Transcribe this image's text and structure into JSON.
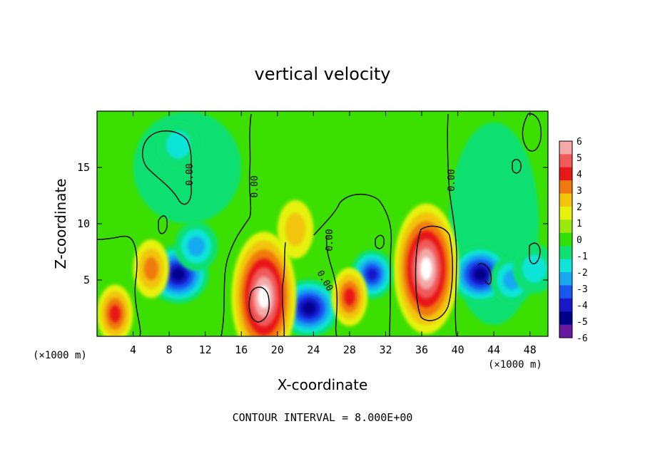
{
  "chart_data": {
    "type": "heatmap",
    "title": "vertical velocity",
    "xlabel": "X-coordinate",
    "ylabel": "Z-coordinate",
    "x_unit_left": "(×1000 m)",
    "x_unit_right": "(×1000 m)",
    "footer": "CONTOUR INTERVAL = 8.000E+00",
    "xlim": [
      0,
      50
    ],
    "ylim": [
      0,
      20
    ],
    "x_ticks": [
      4,
      8,
      12,
      16,
      20,
      24,
      28,
      32,
      36,
      40,
      44,
      48
    ],
    "y_ticks": [
      5,
      10,
      15
    ],
    "contour_label": "0.00",
    "colorbar": {
      "levels": [
        6,
        5,
        4,
        3,
        2,
        1,
        0,
        -1,
        -2,
        -3,
        -4,
        -5,
        -6
      ],
      "colors": [
        "#f4a8a8",
        "#f05a5a",
        "#e81818",
        "#f07a10",
        "#f2c40a",
        "#e6f20c",
        "#9ae80c",
        "#30e000",
        "#10e070",
        "#10e4d8",
        "#18a8f0",
        "#1858f0",
        "#1818c8",
        "#00008c",
        "#6a1aa0"
      ]
    },
    "updrafts": [
      {
        "x": 2,
        "z": 2,
        "peak": 5
      },
      {
        "x": 6,
        "z": 6,
        "peak": 4
      },
      {
        "x": 18.5,
        "z": 3.5,
        "peak": 9
      },
      {
        "x": 22,
        "z": 9.5,
        "peak": 2
      },
      {
        "x": 28,
        "z": 3.5,
        "peak": 5
      },
      {
        "x": 36.5,
        "z": 6,
        "peak": 12
      }
    ],
    "downdrafts": [
      {
        "x": 9,
        "z": 5.5,
        "peak": -8
      },
      {
        "x": 11,
        "z": 8,
        "peak": -4
      },
      {
        "x": 23.5,
        "z": 2.5,
        "peak": -8
      },
      {
        "x": 30.5,
        "z": 5.5,
        "peak": -6
      },
      {
        "x": 42.5,
        "z": 5.5,
        "peak": -8
      },
      {
        "x": 46,
        "z": 5,
        "peak": -3.5
      },
      {
        "x": 9,
        "z": 17,
        "peak": -1.3
      },
      {
        "x": 48.5,
        "z": 6,
        "peak": -2
      }
    ]
  }
}
